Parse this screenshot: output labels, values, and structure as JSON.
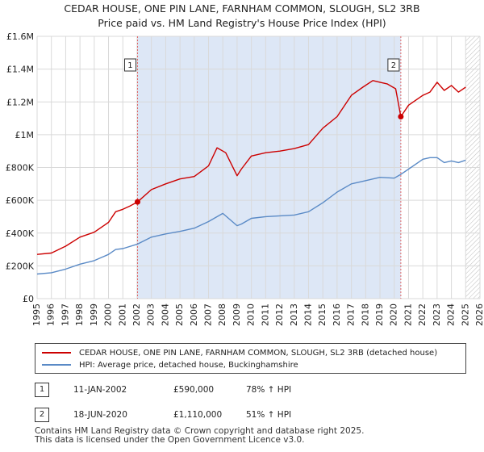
{
  "title_line1": "CEDAR HOUSE, ONE PIN LANE, FARNHAM COMMON, SLOUGH, SL2 3RB",
  "title_line2": "Price paid vs. HM Land Registry's House Price Index (HPI)",
  "colors": {
    "property": "#cc0000",
    "hpi": "#5a8ac6",
    "shade": "#dde7f6",
    "grid": "#d9d9d9",
    "vline": "#e06666"
  },
  "legend": {
    "property_label": "CEDAR HOUSE, ONE PIN LANE, FARNHAM COMMON, SLOUGH, SL2 3RB (detached house)",
    "hpi_label": "HPI: Average price, detached house, Buckinghamshire"
  },
  "sales": [
    {
      "num": "1",
      "date": "11-JAN-2002",
      "price": "£590,000",
      "hpi_change": "78% ↑ HPI"
    },
    {
      "num": "2",
      "date": "18-JUN-2020",
      "price": "£1,110,000",
      "hpi_change": "51% ↑ HPI"
    }
  ],
  "footer": {
    "line1": "Contains HM Land Registry data © Crown copyright and database right 2025.",
    "line2": "This data is licensed under the Open Government Licence v3.0."
  },
  "chart_data": {
    "type": "line",
    "title": "CEDAR HOUSE, ONE PIN LANE, FARNHAM COMMON, SLOUGH, SL2 3RB",
    "subtitle": "Price paid vs. HM Land Registry's House Price Index (HPI)",
    "xlabel": "",
    "ylabel": "",
    "xlim": [
      1995,
      2026
    ],
    "ylim": [
      0,
      1600000
    ],
    "x_ticks": [
      1995,
      1996,
      1997,
      1998,
      1999,
      2000,
      2001,
      2002,
      2003,
      2004,
      2005,
      2006,
      2007,
      2008,
      2009,
      2010,
      2011,
      2012,
      2013,
      2014,
      2015,
      2016,
      2017,
      2018,
      2019,
      2020,
      2021,
      2022,
      2023,
      2024,
      2025,
      2026
    ],
    "y_ticks": [
      {
        "value": 0,
        "label": "£0"
      },
      {
        "value": 200000,
        "label": "£200K"
      },
      {
        "value": 400000,
        "label": "£400K"
      },
      {
        "value": 600000,
        "label": "£600K"
      },
      {
        "value": 800000,
        "label": "£800K"
      },
      {
        "value": 1000000,
        "label": "£1M"
      },
      {
        "value": 1200000,
        "label": "£1.2M"
      },
      {
        "value": 1400000,
        "label": "£1.4M"
      },
      {
        "value": 1600000,
        "label": "£1.6M"
      }
    ],
    "grid": true,
    "shaded_range": [
      2002.03,
      2020.46
    ],
    "hatched_from": 2025.0,
    "series": [
      {
        "name": "CEDAR HOUSE, ONE PIN LANE, FARNHAM COMMON, SLOUGH, SL2 3RB (detached house)",
        "x": [
          1995,
          1996,
          1997,
          1998,
          1999,
          2000,
          2000.5,
          2001,
          2001.5,
          2002.03,
          2003,
          2004,
          2005,
          2006,
          2007,
          2007.6,
          2008.2,
          2009.0,
          2009.3,
          2010,
          2011,
          2012,
          2013,
          2014,
          2015,
          2016,
          2017,
          2017.8,
          2018.5,
          2019,
          2019.5,
          2020.1,
          2020.46,
          2021,
          2022,
          2022.5,
          2023,
          2023.5,
          2024,
          2024.5,
          2025
        ],
        "y": [
          270000,
          278000,
          320000,
          375000,
          405000,
          465000,
          530000,
          545000,
          565000,
          590000,
          665000,
          700000,
          730000,
          745000,
          810000,
          920000,
          890000,
          750000,
          790000,
          870000,
          890000,
          900000,
          915000,
          940000,
          1040000,
          1110000,
          1240000,
          1290000,
          1330000,
          1320000,
          1310000,
          1280000,
          1110000,
          1180000,
          1240000,
          1260000,
          1320000,
          1270000,
          1300000,
          1260000,
          1290000
        ]
      },
      {
        "name": "HPI: Average price, detached house, Buckinghamshire",
        "x": [
          1995,
          1996,
          1997,
          1998,
          1999,
          2000,
          2000.5,
          2001,
          2002,
          2003,
          2004,
          2005,
          2006,
          2007,
          2008,
          2009.0,
          2009.3,
          2010,
          2011,
          2012,
          2013,
          2014,
          2015,
          2016,
          2017,
          2018,
          2019,
          2020,
          2020.5,
          2021,
          2022,
          2022.5,
          2023,
          2023.5,
          2024,
          2024.5,
          2025
        ],
        "y": [
          150000,
          158000,
          180000,
          210000,
          232000,
          270000,
          300000,
          305000,
          332000,
          375000,
          395000,
          410000,
          430000,
          470000,
          520000,
          445000,
          455000,
          490000,
          500000,
          505000,
          510000,
          530000,
          585000,
          650000,
          700000,
          720000,
          740000,
          735000,
          760000,
          790000,
          850000,
          860000,
          860000,
          830000,
          840000,
          830000,
          845000
        ]
      }
    ],
    "annotations": [
      {
        "label": "1",
        "x": 2002.03,
        "y": 590000
      },
      {
        "label": "2",
        "x": 2020.46,
        "y": 1110000
      }
    ]
  }
}
